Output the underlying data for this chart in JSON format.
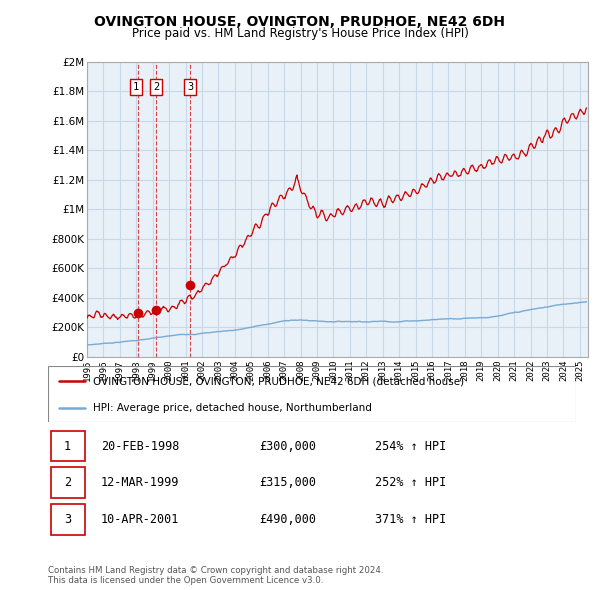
{
  "title": "OVINGTON HOUSE, OVINGTON, PRUDHOE, NE42 6DH",
  "subtitle": "Price paid vs. HM Land Registry's House Price Index (HPI)",
  "x_start": 1995.0,
  "x_end": 2025.5,
  "y_min": 0,
  "y_max": 2000000,
  "yticks": [
    0,
    200000,
    400000,
    600000,
    800000,
    1000000,
    1200000,
    1400000,
    1600000,
    1800000,
    2000000
  ],
  "ytick_labels": [
    "£0",
    "£200K",
    "£400K",
    "£600K",
    "£800K",
    "£1M",
    "£1.2M",
    "£1.4M",
    "£1.6M",
    "£1.8M",
    "£2M"
  ],
  "hpi_color": "#7aaad4",
  "price_color": "#cc0000",
  "sale_marker_color": "#cc0000",
  "vline_color": "#cc0000",
  "grid_color": "#c8d8e8",
  "chart_bg": "#e8f0f8",
  "background_color": "#ffffff",
  "legend_label_price": "OVINGTON HOUSE, OVINGTON, PRUDHOE, NE42 6DH (detached house)",
  "legend_label_hpi": "HPI: Average price, detached house, Northumberland",
  "sales": [
    {
      "num": 1,
      "date_x": 1998.13,
      "price": 300000
    },
    {
      "num": 2,
      "date_x": 1999.2,
      "price": 315000
    },
    {
      "num": 3,
      "date_x": 2001.28,
      "price": 490000
    }
  ],
  "table_rows": [
    {
      "num": 1,
      "date": "20-FEB-1998",
      "price": "£300,000",
      "hpi": "254% ↑ HPI"
    },
    {
      "num": 2,
      "date": "12-MAR-1999",
      "price": "£315,000",
      "hpi": "252% ↑ HPI"
    },
    {
      "num": 3,
      "date": "10-APR-2001",
      "price": "£490,000",
      "hpi": "371% ↑ HPI"
    }
  ],
  "footer": "Contains HM Land Registry data © Crown copyright and database right 2024.\nThis data is licensed under the Open Government Licence v3.0.",
  "xticks": [
    1995,
    1996,
    1997,
    1998,
    1999,
    2000,
    2001,
    2002,
    2003,
    2004,
    2005,
    2006,
    2007,
    2008,
    2009,
    2010,
    2011,
    2012,
    2013,
    2014,
    2015,
    2016,
    2017,
    2018,
    2019,
    2020,
    2021,
    2022,
    2023,
    2024,
    2025
  ],
  "figsize": [
    6.0,
    5.9
  ],
  "dpi": 100
}
